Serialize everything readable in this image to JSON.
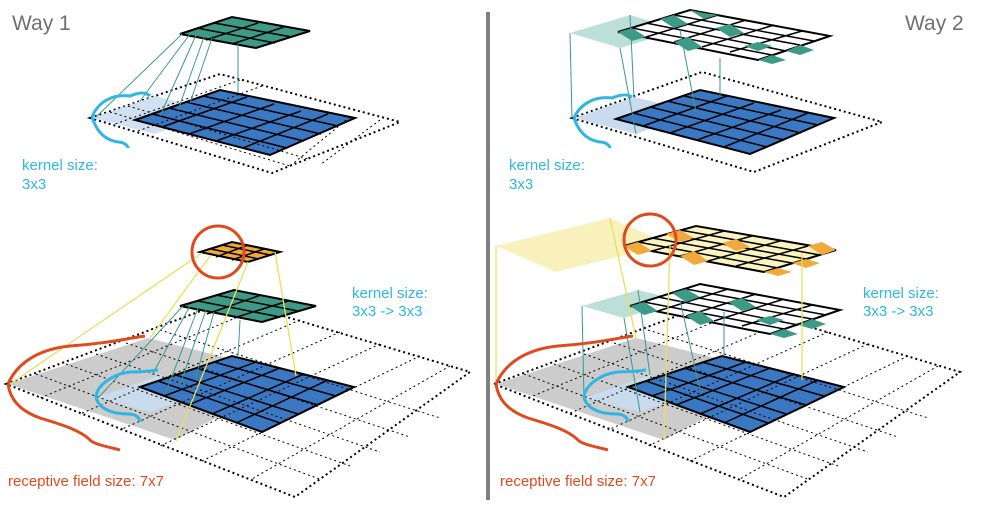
{
  "panels": {
    "left": {
      "title": "Way 1"
    },
    "right": {
      "title": "Way 2"
    }
  },
  "labels": {
    "kernel_top_left": [
      "kernel size:",
      "3x3"
    ],
    "kernel_top_right": [
      "kernel size:",
      "3x3"
    ],
    "kernel_bottom_left": [
      "kernel size:",
      "3x3 -> 3x3"
    ],
    "kernel_bottom_right": [
      "kernel size:",
      "3x3 -> 3x3"
    ],
    "receptive_left": "receptive field size: 7x7",
    "receptive_right": "receptive field size: 7x7"
  },
  "colors": {
    "input_blue": "#3a78c4",
    "output_teal": "#3c9a87",
    "output_orange": "#f0a93a",
    "receptive_gray": "#cccccc",
    "kernel_text": "#2fb6e4",
    "receptive_text": "#e04a1f",
    "title_text": "#707070",
    "divider": "#808080"
  }
}
